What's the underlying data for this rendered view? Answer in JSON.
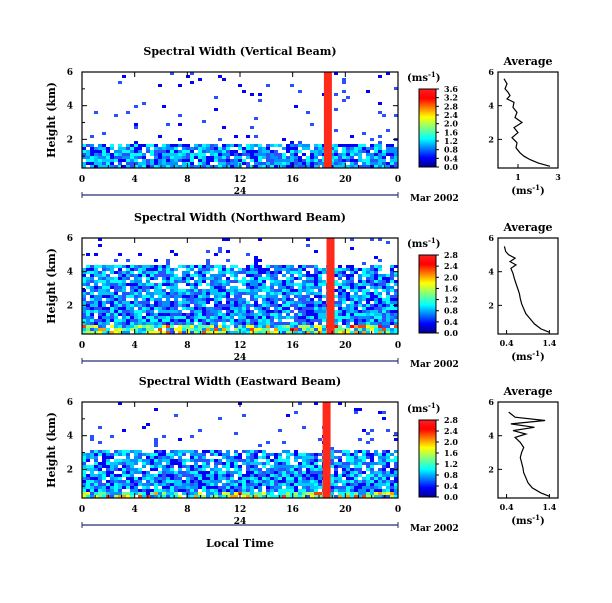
{
  "chart_data": [
    {
      "type": "heatmap",
      "title": "Spectral Width (Vertical Beam)",
      "ylabel": "Height (km)",
      "x_ticks": [
        "0",
        "4",
        "8",
        "12",
        "16",
        "20",
        "0"
      ],
      "date_label": "24",
      "month_label": "Mar 2002",
      "xlim": [
        0,
        24
      ],
      "ylim": [
        0.3,
        6
      ],
      "y_ticks": [
        "6",
        "4",
        "2"
      ],
      "colorbar": {
        "unit": "(ms",
        "unit_exp": "-1",
        "unit_close": ")",
        "ticks": [
          "3.6",
          "3.2",
          "2.8",
          "2.4",
          "2.0",
          "1.6",
          "1.2",
          "0.8",
          "0.4",
          "0.0"
        ],
        "range": [
          0,
          3.6
        ]
      },
      "fill_top_km": 1.8,
      "average_profile": {
        "title": "Average",
        "xlabel": "(ms",
        "xlabel_exp": "-1",
        "xlabel_close": ")",
        "x_ticks": [
          "1",
          "3"
        ],
        "xlim": [
          0,
          3
        ],
        "y_ticks": [
          "6",
          "4",
          "2"
        ],
        "heights": [
          0.4,
          0.6,
          0.8,
          1.0,
          1.2,
          1.5,
          1.8,
          2.1,
          2.4,
          2.7,
          3.0,
          3.3,
          3.6,
          3.9,
          4.2,
          4.4,
          4.6,
          4.8,
          5.0,
          5.3,
          5.6
        ],
        "values": [
          2.6,
          2.0,
          1.6,
          1.3,
          1.1,
          0.9,
          0.95,
          0.7,
          1.0,
          0.8,
          1.2,
          0.85,
          0.95,
          0.75,
          0.8,
          0.45,
          0.6,
          0.5,
          0.35,
          0.45,
          0.3
        ]
      }
    },
    {
      "type": "heatmap",
      "title": "Spectral Width (Northward Beam)",
      "ylabel": "Height (km)",
      "x_ticks": [
        "0",
        "4",
        "8",
        "12",
        "16",
        "20",
        "0"
      ],
      "date_label": "24",
      "month_label": "Mar 2002",
      "xlim": [
        0,
        24
      ],
      "ylim": [
        0.3,
        6
      ],
      "y_ticks": [
        "6",
        "4",
        "2"
      ],
      "colorbar": {
        "unit": "(ms",
        "unit_exp": "-1",
        "unit_close": ")",
        "ticks": [
          "2.8",
          "2.4",
          "2.0",
          "1.6",
          "1.2",
          "0.8",
          "0.4",
          "0.0"
        ],
        "range": [
          0,
          2.8
        ]
      },
      "fill_top_km": 4.4,
      "average_profile": {
        "title": "Average",
        "xlabel": "(ms",
        "xlabel_exp": "-1",
        "xlabel_close": ")",
        "x_ticks": [
          "0.4",
          "1.4"
        ],
        "xlim": [
          0.2,
          1.6
        ],
        "y_ticks": [
          "6",
          "4",
          "2"
        ],
        "heights": [
          0.4,
          0.6,
          0.9,
          1.2,
          1.5,
          1.8,
          2.1,
          2.4,
          2.7,
          3.0,
          3.3,
          3.6,
          3.9,
          4.2,
          4.4,
          4.6,
          4.8,
          5.0,
          5.2,
          5.5
        ],
        "values": [
          1.4,
          1.2,
          1.05,
          0.95,
          0.85,
          0.8,
          0.75,
          0.72,
          0.7,
          0.66,
          0.62,
          0.58,
          0.55,
          0.5,
          0.62,
          0.48,
          0.6,
          0.45,
          0.38,
          0.35
        ]
      }
    },
    {
      "type": "heatmap",
      "title": "Spectral Width (Eastward Beam)",
      "ylabel": "Height (km)",
      "x_ticks": [
        "0",
        "4",
        "8",
        "12",
        "16",
        "20",
        "0"
      ],
      "date_label": "24",
      "month_label": "Mar 2002",
      "xlabel": "Local Time",
      "xlim": [
        0,
        24
      ],
      "ylim": [
        0.3,
        6
      ],
      "y_ticks": [
        "6",
        "4",
        "2"
      ],
      "colorbar": {
        "unit": "(ms",
        "unit_exp": "-1",
        "unit_close": ")",
        "ticks": [
          "2.8",
          "2.4",
          "2.0",
          "1.6",
          "1.2",
          "0.8",
          "0.4",
          "0.0"
        ],
        "range": [
          0,
          2.8
        ]
      },
      "fill_top_km": 3.3,
      "average_profile": {
        "title": "Average",
        "xlabel": "(ms",
        "xlabel_exp": "-1",
        "xlabel_close": ")",
        "x_ticks": [
          "0.4",
          "1.4"
        ],
        "xlim": [
          0.2,
          1.6
        ],
        "y_ticks": [
          "6",
          "4",
          "2"
        ],
        "heights": [
          0.4,
          0.6,
          0.9,
          1.2,
          1.5,
          1.8,
          2.1,
          2.4,
          2.7,
          3.0,
          3.3,
          3.6,
          3.9,
          4.1,
          4.3,
          4.5,
          4.7,
          4.9,
          5.1,
          5.4
        ],
        "values": [
          1.4,
          1.2,
          1.0,
          0.9,
          0.85,
          0.8,
          0.78,
          0.75,
          0.72,
          0.75,
          0.8,
          0.72,
          0.6,
          0.85,
          0.55,
          1.05,
          0.5,
          1.3,
          0.6,
          0.45
        ]
      }
    }
  ]
}
